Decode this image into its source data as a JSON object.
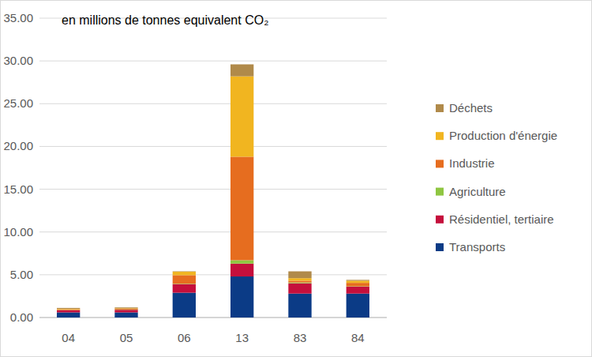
{
  "chart_data": {
    "type": "bar",
    "title": "en millions de tonnes equivalent CO₂",
    "categories": [
      "04",
      "05",
      "06",
      "13",
      "83",
      "84"
    ],
    "stacked": true,
    "grid": true,
    "legend": "right",
    "ylim": [
      0,
      35
    ],
    "yticks": [
      {
        "value": 0,
        "label": "0.00"
      },
      {
        "value": 5,
        "label": "5.00"
      },
      {
        "value": 10,
        "label": "10.00"
      },
      {
        "value": 15,
        "label": "15.00"
      },
      {
        "value": 20,
        "label": "20.00"
      },
      {
        "value": 25,
        "label": "25.00"
      },
      {
        "value": 30,
        "label": "30.00"
      },
      {
        "value": 35,
        "label": "35.00"
      }
    ],
    "series": [
      {
        "name": "Transports",
        "color": "#0b3b86",
        "values": [
          0.6,
          0.6,
          2.9,
          4.8,
          2.8,
          2.8
        ]
      },
      {
        "name": "Résidentiel, tertiaire",
        "color": "#c50f3c",
        "values": [
          0.25,
          0.3,
          1.0,
          1.5,
          1.2,
          0.8
        ]
      },
      {
        "name": "Agriculture",
        "color": "#8fc641",
        "values": [
          0.02,
          0.03,
          0.05,
          0.4,
          0.1,
          0.05
        ]
      },
      {
        "name": "Industrie",
        "color": "#e66d1f",
        "values": [
          0.1,
          0.1,
          1.0,
          12.1,
          0.2,
          0.4
        ]
      },
      {
        "name": "Production d'énergie",
        "color": "#f1b520",
        "values": [
          0.05,
          0.05,
          0.4,
          9.4,
          0.3,
          0.25
        ]
      },
      {
        "name": "Déchets",
        "color": "#b08a4a",
        "values": [
          0.1,
          0.1,
          0.05,
          1.4,
          0.8,
          0.1
        ]
      }
    ]
  }
}
